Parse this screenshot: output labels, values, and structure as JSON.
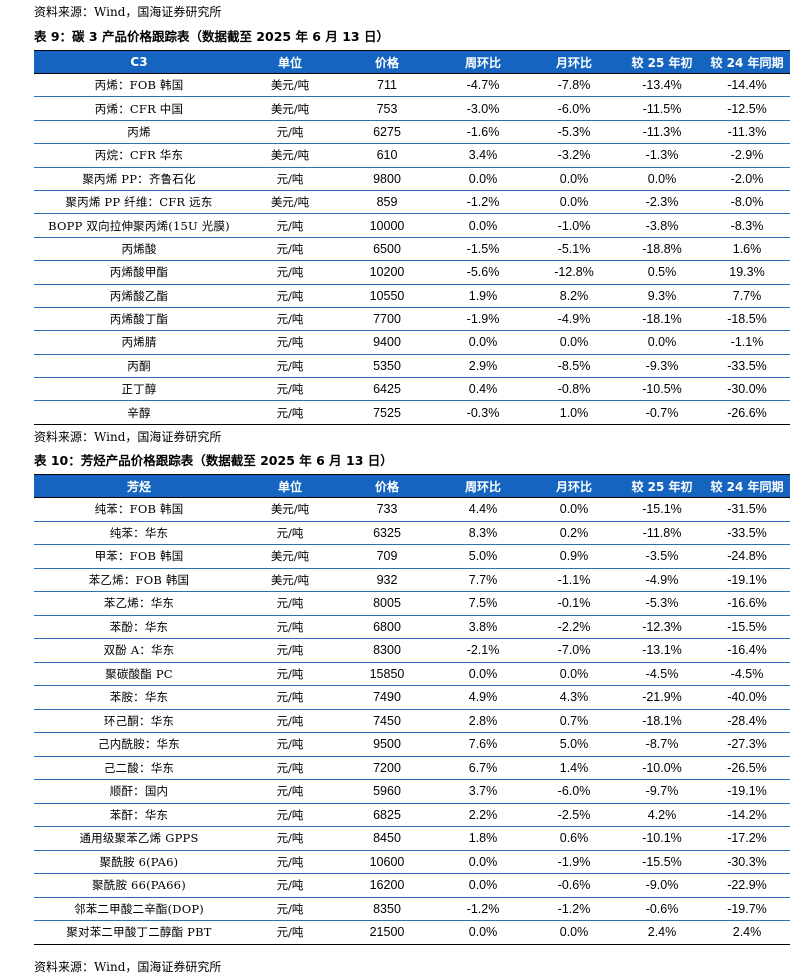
{
  "source_top": "资料来源：Wind，国海证券研究所",
  "table9": {
    "caption": "表 9：碳 3 产品价格跟踪表（数据截至 2025 年 6 月 13 日）",
    "headers": [
      "C3",
      "单位",
      "价格",
      "周环比",
      "月环比",
      "较 25 年初",
      "较 24 年同期"
    ],
    "rows": [
      [
        "丙烯：FOB 韩国",
        "美元/吨",
        "711",
        "-4.7%",
        "-7.8%",
        "-13.4%",
        "-14.4%"
      ],
      [
        "丙烯：CFR 中国",
        "美元/吨",
        "753",
        "-3.0%",
        "-6.0%",
        "-11.5%",
        "-12.5%"
      ],
      [
        "丙烯",
        "元/吨",
        "6275",
        "-1.6%",
        "-5.3%",
        "-11.3%",
        "-11.3%"
      ],
      [
        "丙烷：CFR 华东",
        "美元/吨",
        "610",
        "3.4%",
        "-3.2%",
        "-1.3%",
        "-2.9%"
      ],
      [
        "聚丙烯 PP：齐鲁石化",
        "元/吨",
        "9800",
        "0.0%",
        "0.0%",
        "0.0%",
        "-2.0%"
      ],
      [
        "聚丙烯 PP 纤维：CFR 远东",
        "美元/吨",
        "859",
        "-1.2%",
        "0.0%",
        "-2.3%",
        "-8.0%"
      ],
      [
        "BOPP 双向拉伸聚丙烯(15U 光膜)",
        "元/吨",
        "10000",
        "0.0%",
        "-1.0%",
        "-3.8%",
        "-8.3%"
      ],
      [
        "丙烯酸",
        "元/吨",
        "6500",
        "-1.5%",
        "-5.1%",
        "-18.8%",
        "1.6%"
      ],
      [
        "丙烯酸甲酯",
        "元/吨",
        "10200",
        "-5.6%",
        "-12.8%",
        "0.5%",
        "19.3%"
      ],
      [
        "丙烯酸乙酯",
        "元/吨",
        "10550",
        "1.9%",
        "8.2%",
        "9.3%",
        "7.7%"
      ],
      [
        "丙烯酸丁酯",
        "元/吨",
        "7700",
        "-1.9%",
        "-4.9%",
        "-18.1%",
        "-18.5%"
      ],
      [
        "丙烯腈",
        "元/吨",
        "9400",
        "0.0%",
        "0.0%",
        "0.0%",
        "-1.1%"
      ],
      [
        "丙酮",
        "元/吨",
        "5350",
        "2.9%",
        "-8.5%",
        "-9.3%",
        "-33.5%"
      ],
      [
        "正丁醇",
        "元/吨",
        "6425",
        "0.4%",
        "-0.8%",
        "-10.5%",
        "-30.0%"
      ],
      [
        "辛醇",
        "元/吨",
        "7525",
        "-0.3%",
        "1.0%",
        "-0.7%",
        "-26.6%"
      ]
    ]
  },
  "source_mid": "资料来源：Wind，国海证券研究所",
  "table10": {
    "caption": "表 10：芳烃产品价格跟踪表（数据截至 2025 年 6 月 13 日）",
    "headers": [
      "芳烃",
      "单位",
      "价格",
      "周环比",
      "月环比",
      "较 25 年初",
      "较 24 年同期"
    ],
    "rows": [
      [
        "纯苯：FOB 韩国",
        "美元/吨",
        "733",
        "4.4%",
        "0.0%",
        "-15.1%",
        "-31.5%"
      ],
      [
        "纯苯：华东",
        "元/吨",
        "6325",
        "8.3%",
        "0.2%",
        "-11.8%",
        "-33.5%"
      ],
      [
        "甲苯：FOB 韩国",
        "美元/吨",
        "709",
        "5.0%",
        "0.9%",
        "-3.5%",
        "-24.8%"
      ],
      [
        "苯乙烯：FOB 韩国",
        "美元/吨",
        "932",
        "7.7%",
        "-1.1%",
        "-4.9%",
        "-19.1%"
      ],
      [
        "苯乙烯：华东",
        "元/吨",
        "8005",
        "7.5%",
        "-0.1%",
        "-5.3%",
        "-16.6%"
      ],
      [
        "苯酚：华东",
        "元/吨",
        "6800",
        "3.8%",
        "-2.2%",
        "-12.3%",
        "-15.5%"
      ],
      [
        "双酚 A：华东",
        "元/吨",
        "8300",
        "-2.1%",
        "-7.0%",
        "-13.1%",
        "-16.4%"
      ],
      [
        "聚碳酸酯 PC",
        "元/吨",
        "15850",
        "0.0%",
        "0.0%",
        "-4.5%",
        "-4.5%"
      ],
      [
        "苯胺：华东",
        "元/吨",
        "7490",
        "4.9%",
        "4.3%",
        "-21.9%",
        "-40.0%"
      ],
      [
        "环己酮：华东",
        "元/吨",
        "7450",
        "2.8%",
        "0.7%",
        "-18.1%",
        "-28.4%"
      ],
      [
        "己内酰胺：华东",
        "元/吨",
        "9500",
        "7.6%",
        "5.0%",
        "-8.7%",
        "-27.3%"
      ],
      [
        "己二酸：华东",
        "元/吨",
        "7200",
        "6.7%",
        "1.4%",
        "-10.0%",
        "-26.5%"
      ],
      [
        "顺酐：国内",
        "元/吨",
        "5960",
        "3.7%",
        "-6.0%",
        "-9.7%",
        "-19.1%"
      ],
      [
        "苯酐：华东",
        "元/吨",
        "6825",
        "2.2%",
        "-2.5%",
        "4.2%",
        "-14.2%"
      ],
      [
        "通用级聚苯乙烯 GPPS",
        "元/吨",
        "8450",
        "1.8%",
        "0.6%",
        "-10.1%",
        "-17.2%"
      ],
      [
        "聚酰胺 6(PA6)",
        "元/吨",
        "10600",
        "0.0%",
        "-1.9%",
        "-15.5%",
        "-30.3%"
      ],
      [
        "聚酰胺 66(PA66)",
        "元/吨",
        "16200",
        "0.0%",
        "-0.6%",
        "-9.0%",
        "-22.9%"
      ],
      [
        "邻苯二甲酸二辛酯(DOP)",
        "元/吨",
        "8350",
        "-1.2%",
        "-1.2%",
        "-0.6%",
        "-19.7%"
      ],
      [
        "聚对苯二甲酸丁二醇酯 PBT",
        "元/吨",
        "21500",
        "0.0%",
        "0.0%",
        "2.4%",
        "2.4%"
      ]
    ]
  },
  "source_bottom": "资料来源：Wind，国海证券研究所",
  "colors": {
    "header_bg": "#1565c0",
    "header_text": "#ffffff",
    "row_border": "#2e6fb5"
  }
}
